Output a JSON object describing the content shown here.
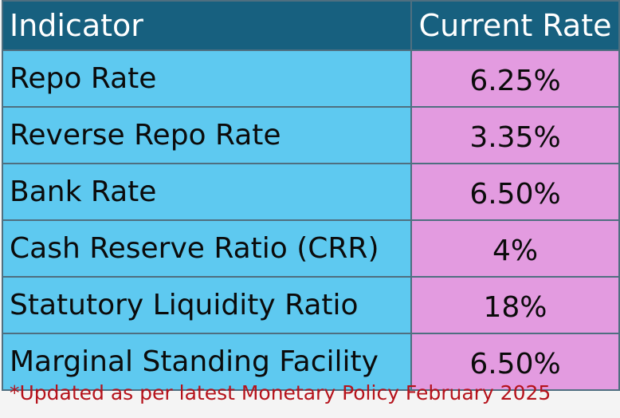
{
  "table": {
    "headers": {
      "indicator": "Indicator",
      "current_rate": "Current Rate"
    },
    "rows": [
      {
        "indicator": "Repo Rate",
        "rate": "6.25%"
      },
      {
        "indicator": "Reverse Repo Rate",
        "rate": "3.35%"
      },
      {
        "indicator": "Bank Rate",
        "rate": "6.50%"
      },
      {
        "indicator": "Cash Reserve Ratio (CRR)",
        "rate": "4%"
      },
      {
        "indicator": "Statutory Liquidity Ratio",
        "rate": "18%"
      },
      {
        "indicator": "Marginal Standing Facility",
        "rate": "6.50%"
      }
    ]
  },
  "footnote": "*Updated as per latest Monetary Policy February 2025",
  "colors": {
    "header_bg": "#17607f",
    "indicator_bg": "#5ec9f0",
    "rate_bg": "#e39be0",
    "footnote_text": "#b5121b"
  }
}
